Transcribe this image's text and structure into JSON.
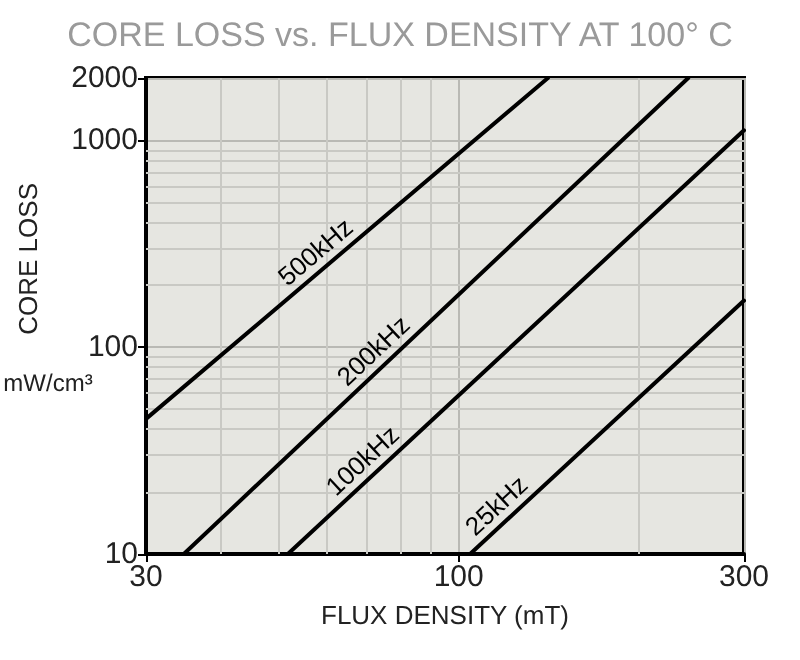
{
  "chart_data": {
    "type": "line",
    "title": "CORE LOSS vs. FLUX DENSITY AT 100° C",
    "xlabel": "FLUX DENSITY (mT)",
    "ylabel": "CORE LOSS",
    "annotations": [
      "mW/cm³"
    ],
    "log": "xy",
    "grid": true,
    "marker": "none",
    "line_style": "solid",
    "legend": false,
    "xlim": [
      30,
      300
    ],
    "ylim": [
      10,
      2000
    ],
    "xticks": [
      30,
      {
        "value": 40,
        "label": null
      },
      {
        "value": 50,
        "label": null
      },
      {
        "value": 60,
        "label": null
      },
      {
        "value": 70,
        "label": null
      },
      {
        "value": 80,
        "label": null
      },
      {
        "value": 90,
        "label": null
      },
      100,
      {
        "value": 200,
        "label": null
      },
      300
    ],
    "yticks": [
      10,
      {
        "value": 20,
        "label": null
      },
      {
        "value": 30,
        "label": null
      },
      {
        "value": 40,
        "label": null
      },
      {
        "value": 50,
        "label": null
      },
      {
        "value": 60,
        "label": null
      },
      {
        "value": 70,
        "label": null
      },
      {
        "value": 80,
        "label": null
      },
      {
        "value": 90,
        "label": null
      },
      100,
      {
        "value": 200,
        "label": null
      },
      {
        "value": 300,
        "label": null
      },
      {
        "value": 400,
        "label": null
      },
      {
        "value": 500,
        "label": null
      },
      {
        "value": 600,
        "label": null
      },
      {
        "value": 700,
        "label": null
      },
      {
        "value": 800,
        "label": null
      },
      {
        "value": 900,
        "label": null
      },
      1000,
      2000
    ],
    "series": [
      {
        "name": "500kHz",
        "color": "#000000",
        "x": [
          30,
          141
        ],
        "values": [
          45,
          2000
        ]
      },
      {
        "name": "200kHz",
        "color": "#000000",
        "x": [
          34.7,
          242
        ],
        "values": [
          10,
          2000
        ]
      },
      {
        "name": "100kHz",
        "color": "#000000",
        "x": [
          51.8,
          300
        ],
        "values": [
          10,
          1117
        ]
      },
      {
        "name": "25kHz",
        "color": "#000000",
        "x": [
          104.5,
          300
        ],
        "values": [
          10,
          168
        ]
      }
    ]
  }
}
